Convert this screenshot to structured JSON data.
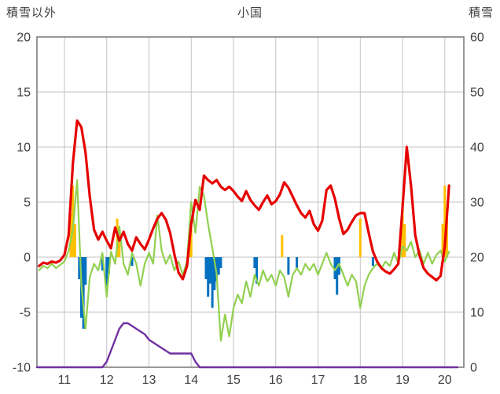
{
  "header": {
    "left_axis_title": "積雪以外",
    "title": "小国",
    "right_axis_title": "積雪"
  },
  "chart_data": {
    "type": "combo",
    "title": "小国",
    "legend": "none",
    "grid": true,
    "colors": {
      "grid": "#c3c3c3",
      "border": "#7f7f7f",
      "text": "#404040",
      "red": "#e60000",
      "green": "#92d050",
      "yellow": "#ffc000",
      "blue": "#0070c0",
      "purple": "#7030a0"
    },
    "x_axis": {
      "min": 10.35,
      "max": 20.45,
      "ticks": [
        11,
        12,
        13,
        14,
        15,
        16,
        17,
        18,
        19,
        20
      ]
    },
    "left_axis": {
      "title": "積雪以外",
      "min": -10,
      "max": 20,
      "ticks": [
        20,
        15,
        10,
        5,
        0,
        -5,
        -10
      ]
    },
    "right_axis": {
      "title": "積雪",
      "min": 0,
      "max": 60,
      "ticks": [
        60,
        50,
        40,
        30,
        20,
        10,
        0
      ]
    },
    "series": [
      {
        "name": "yellow-bars",
        "type": "bar",
        "axis": "left",
        "color": "#ffc000",
        "points": [
          [
            11.15,
            4.0
          ],
          [
            11.2,
            6.5
          ],
          [
            11.25,
            3.0
          ],
          [
            12.25,
            3.5
          ],
          [
            12.3,
            2.0
          ],
          [
            13.95,
            1.5
          ],
          [
            14.0,
            2.6
          ],
          [
            16.15,
            2.0
          ],
          [
            18.0,
            3.5
          ],
          [
            18.95,
            2.0
          ],
          [
            19.0,
            5.0
          ],
          [
            19.05,
            3.0
          ],
          [
            19.95,
            3.0
          ],
          [
            20.0,
            6.5
          ],
          [
            20.05,
            4.5
          ]
        ]
      },
      {
        "name": "blue-bars",
        "type": "bar",
        "axis": "left",
        "color": "#0070c0",
        "points": [
          [
            11.35,
            -2.0
          ],
          [
            11.4,
            -5.5
          ],
          [
            11.45,
            -6.5
          ],
          [
            11.5,
            -2.5
          ],
          [
            11.9,
            -1.2
          ],
          [
            12.0,
            -2.6
          ],
          [
            12.05,
            -1.5
          ],
          [
            12.6,
            -0.8
          ],
          [
            14.35,
            -2.0
          ],
          [
            14.4,
            -3.6
          ],
          [
            14.45,
            -2.4
          ],
          [
            14.5,
            -4.6
          ],
          [
            14.55,
            -3.0
          ],
          [
            14.6,
            -2.2
          ],
          [
            14.65,
            -1.6
          ],
          [
            14.7,
            -1.0
          ],
          [
            15.5,
            -1.0
          ],
          [
            15.55,
            -2.4
          ],
          [
            16.3,
            -1.6
          ],
          [
            16.5,
            -1.0
          ],
          [
            17.4,
            -2.0
          ],
          [
            17.45,
            -3.4
          ],
          [
            17.5,
            -1.6
          ],
          [
            18.3,
            -0.8
          ]
        ]
      },
      {
        "name": "snow-depth-line",
        "type": "line",
        "axis": "right",
        "color": "#7030a0",
        "width": 2.4,
        "points": [
          [
            10.35,
            0
          ],
          [
            11.9,
            0
          ],
          [
            12.0,
            1
          ],
          [
            12.1,
            3
          ],
          [
            12.2,
            5
          ],
          [
            12.3,
            7
          ],
          [
            12.4,
            8
          ],
          [
            12.5,
            8
          ],
          [
            12.6,
            7.5
          ],
          [
            12.7,
            7
          ],
          [
            12.8,
            6.5
          ],
          [
            12.9,
            6
          ],
          [
            13.0,
            5
          ],
          [
            13.1,
            4.5
          ],
          [
            13.2,
            4
          ],
          [
            13.3,
            3.5
          ],
          [
            13.4,
            3
          ],
          [
            13.5,
            2.5
          ],
          [
            14.0,
            2.5
          ],
          [
            14.1,
            1
          ],
          [
            14.2,
            0
          ],
          [
            20.3,
            0
          ]
        ]
      },
      {
        "name": "green-line",
        "type": "line",
        "axis": "left",
        "color": "#92d050",
        "width": 2.2,
        "x_start": 10.4,
        "x_step": 0.1,
        "values": [
          -1.2,
          -0.8,
          -1.0,
          -0.6,
          -1.0,
          -0.7,
          -0.4,
          0.6,
          2.5,
          7.0,
          -2.5,
          -6.5,
          -1.8,
          -0.6,
          -1.2,
          0.4,
          -3.6,
          0.5,
          -0.6,
          2.8,
          -0.6,
          -1.6,
          0.4,
          -0.6,
          -2.6,
          -0.6,
          0.4,
          -0.6,
          3.8,
          0.6,
          -0.6,
          0.2,
          -1.2,
          -0.4,
          -1.6,
          -0.4,
          5.0,
          2.2,
          6.4,
          5.6,
          3.0,
          0.8,
          -1.5,
          -7.6,
          -5.2,
          -7.2,
          -4.6,
          -3.4,
          -4.2,
          -2.2,
          -3.6,
          -1.6,
          -2.6,
          -1.2,
          -2.2,
          -1.6,
          -2.6,
          -1.2,
          -1.8,
          -3.6,
          -1.6,
          -1.0,
          -1.6,
          -0.6,
          -1.2,
          -0.6,
          -1.6,
          -0.6,
          0.4,
          -0.6,
          -1.2,
          -0.6,
          -1.6,
          -2.6,
          -1.6,
          -2.2,
          -4.6,
          -2.6,
          -1.6,
          -1.0,
          -0.6,
          -1.0,
          -0.4,
          -0.8,
          0.4,
          -0.6,
          1.0,
          0.6,
          1.4,
          0.0,
          0.6,
          -0.6,
          0.4,
          -0.6,
          0.2,
          0.6,
          -0.4,
          0.5
        ]
      },
      {
        "name": "red-line",
        "type": "line",
        "axis": "left",
        "color": "#e60000",
        "width": 3.2,
        "x_start": 10.4,
        "x_step": 0.1,
        "values": [
          -0.8,
          -0.5,
          -0.6,
          -0.4,
          -0.5,
          -0.3,
          0.2,
          2.0,
          8.5,
          12.4,
          11.8,
          9.5,
          5.5,
          2.5,
          1.6,
          2.3,
          1.5,
          0.8,
          2.7,
          1.5,
          2.3,
          1.2,
          0.6,
          1.8,
          1.2,
          0.7,
          1.6,
          2.6,
          3.5,
          4.0,
          3.4,
          2.2,
          0.3,
          -1.4,
          -2.0,
          -0.8,
          3.0,
          5.2,
          4.3,
          7.4,
          7.0,
          6.7,
          7.0,
          6.4,
          6.1,
          6.4,
          6.0,
          5.5,
          5.1,
          6.0,
          5.2,
          4.7,
          4.3,
          5.0,
          5.6,
          4.8,
          5.1,
          5.7,
          6.8,
          6.3,
          5.5,
          4.7,
          4.0,
          3.6,
          4.2,
          3.0,
          2.4,
          3.3,
          6.1,
          6.5,
          5.3,
          3.5,
          2.1,
          2.5,
          3.2,
          3.8,
          4.0,
          4.0,
          2.2,
          0.5,
          -0.4,
          -1.0,
          -1.3,
          -1.5,
          -1.1,
          -0.6,
          4.5,
          10.0,
          6.5,
          2.0,
          0.2,
          -1.0,
          -1.5,
          -1.8,
          -2.1,
          -1.7,
          1.0,
          6.5
        ]
      }
    ]
  }
}
